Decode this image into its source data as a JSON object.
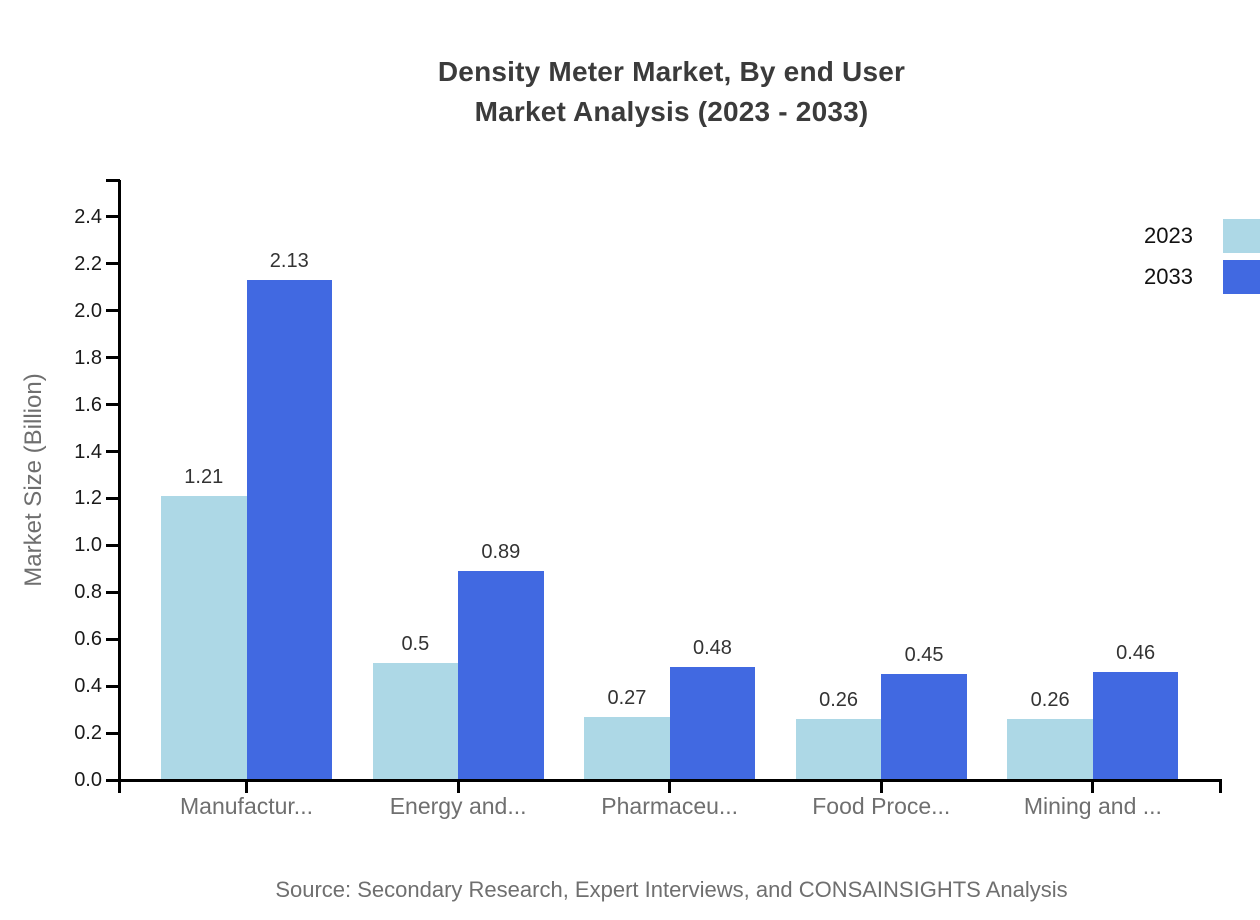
{
  "title": {
    "line1": "Density Meter Market, By end User",
    "line2": "Market Analysis (2023 - 2033)"
  },
  "legend": {
    "items": [
      {
        "label": "2023",
        "color": "#ADD8E6"
      },
      {
        "label": "2033",
        "color": "#4169E1"
      }
    ]
  },
  "source_note": "Source: Secondary Research, Expert Interviews, and CONSAINSIGHTS Analysis",
  "chart_data": {
    "type": "bar",
    "title": "Density Meter Market, By end User Market Analysis (2023 - 2033)",
    "categories": [
      "Manufactur...",
      "Energy and...",
      "Pharmaceu...",
      "Food Proce...",
      "Mining and ..."
    ],
    "series": [
      {
        "name": "2023",
        "color": "#ADD8E6",
        "values": [
          1.21,
          0.5,
          0.27,
          0.26,
          0.26
        ]
      },
      {
        "name": "2033",
        "color": "#4169E1",
        "values": [
          2.13,
          0.89,
          0.48,
          0.45,
          0.46
        ]
      }
    ],
    "xlabel": "",
    "ylabel": "Market Size (Billion)",
    "ylim": [
      0,
      2.56
    ],
    "yticks": [
      0,
      0.2,
      0.4,
      0.6,
      0.8,
      1.0,
      1.2,
      1.4,
      1.6,
      1.8,
      2.0,
      2.2,
      2.4
    ],
    "grid": false,
    "legend_position": "top-right",
    "bar_value_labels": true
  }
}
